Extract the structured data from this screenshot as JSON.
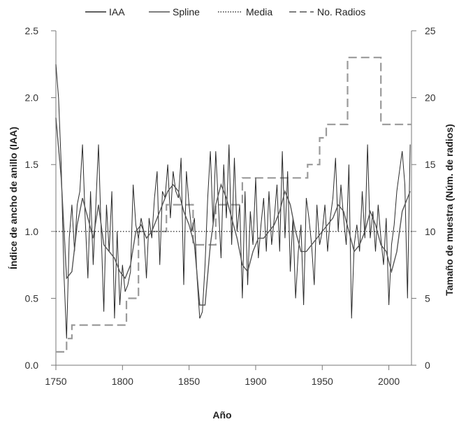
{
  "chart_data": {
    "type": "line",
    "xlabel": "Año",
    "ylabel_left": "Índice de ancho de anillo (IAA)",
    "ylabel_right": "Tamaño de muestra (Núm. de radios)",
    "xlim": [
      1750,
      2017
    ],
    "ylim_left": [
      0,
      2.5
    ],
    "ylim_right": [
      0,
      25
    ],
    "x_ticks": [
      1750,
      1800,
      1850,
      1900,
      1950,
      2000
    ],
    "y_ticks_left": [
      "0.0",
      "0.5",
      "1.0",
      "1.5",
      "2.0",
      "2.5"
    ],
    "y_ticks_right": [
      "0",
      "5",
      "10",
      "15",
      "20",
      "25"
    ],
    "legend": [
      "IAA",
      "Spline",
      "Media",
      "No. Radios"
    ],
    "legend_position": "top",
    "grid": false,
    "media": 1.0,
    "colors": {
      "iaa": "#2b2b2b",
      "spline": "#555555",
      "media": "#111111",
      "radios": "#9a9a9a"
    },
    "series": [
      {
        "name": "IAA",
        "axis": "left",
        "x": [
          1750,
          1752,
          1754,
          1756,
          1758,
          1760,
          1762,
          1764,
          1766,
          1768,
          1770,
          1772,
          1774,
          1776,
          1778,
          1780,
          1782,
          1784,
          1786,
          1788,
          1790,
          1792,
          1794,
          1796,
          1798,
          1800,
          1802,
          1804,
          1806,
          1808,
          1810,
          1812,
          1814,
          1816,
          1818,
          1820,
          1822,
          1824,
          1826,
          1828,
          1830,
          1832,
          1834,
          1836,
          1838,
          1840,
          1842,
          1844,
          1846,
          1848,
          1850,
          1852,
          1854,
          1856,
          1858,
          1860,
          1862,
          1864,
          1866,
          1868,
          1870,
          1872,
          1874,
          1876,
          1878,
          1880,
          1882,
          1884,
          1886,
          1888,
          1890,
          1892,
          1894,
          1896,
          1898,
          1900,
          1902,
          1904,
          1906,
          1908,
          1910,
          1912,
          1914,
          1916,
          1918,
          1920,
          1922,
          1924,
          1926,
          1928,
          1930,
          1932,
          1934,
          1936,
          1938,
          1940,
          1942,
          1944,
          1946,
          1948,
          1950,
          1952,
          1954,
          1956,
          1958,
          1960,
          1962,
          1964,
          1966,
          1968,
          1970,
          1972,
          1974,
          1976,
          1978,
          1980,
          1982,
          1984,
          1986,
          1988,
          1990,
          1992,
          1994,
          1996,
          1998,
          2000,
          2002,
          2004,
          2006,
          2008,
          2010,
          2012,
          2014,
          2016
        ],
        "values": [
          2.25,
          2.0,
          1.5,
          0.7,
          0.2,
          0.95,
          1.2,
          0.85,
          1.2,
          1.3,
          1.65,
          1.1,
          0.65,
          1.3,
          0.75,
          1.2,
          1.65,
          1.0,
          0.4,
          1.2,
          0.85,
          1.3,
          0.35,
          1.0,
          0.45,
          0.75,
          0.55,
          0.6,
          0.7,
          1.35,
          1.05,
          0.95,
          1.1,
          1.0,
          0.65,
          1.1,
          0.95,
          1.25,
          1.45,
          0.75,
          1.3,
          1.25,
          1.5,
          1.1,
          1.45,
          1.3,
          1.25,
          1.55,
          0.6,
          1.45,
          1.2,
          1.0,
          1.1,
          0.65,
          0.35,
          0.4,
          0.75,
          1.25,
          1.6,
          1.05,
          1.6,
          1.2,
          0.8,
          1.5,
          1.1,
          1.65,
          0.9,
          1.55,
          1.0,
          1.2,
          0.5,
          1.3,
          0.6,
          1.15,
          0.9,
          1.4,
          0.8,
          1.05,
          1.25,
          0.85,
          1.3,
          0.9,
          1.1,
          1.35,
          0.85,
          1.6,
          0.95,
          1.45,
          0.7,
          1.1,
          0.5,
          0.85,
          1.05,
          0.45,
          1.25,
          1.1,
          0.9,
          0.6,
          1.2,
          0.9,
          1.0,
          1.2,
          0.85,
          1.1,
          1.25,
          1.55,
          1.0,
          1.35,
          1.1,
          0.9,
          1.5,
          0.35,
          0.9,
          1.05,
          0.85,
          1.3,
          0.95,
          1.65,
          0.95,
          1.15,
          0.85,
          1.2,
          0.95,
          0.75,
          1.1,
          0.45,
          0.9,
          1.05,
          1.3,
          1.45,
          1.6,
          1.35,
          0.5,
          1.65
        ]
      },
      {
        "name": "Spline",
        "axis": "left",
        "x": [
          1750,
          1754,
          1758,
          1762,
          1766,
          1770,
          1774,
          1778,
          1782,
          1786,
          1790,
          1794,
          1798,
          1802,
          1806,
          1810,
          1814,
          1818,
          1822,
          1826,
          1830,
          1834,
          1838,
          1842,
          1846,
          1850,
          1854,
          1858,
          1862,
          1866,
          1870,
          1874,
          1878,
          1882,
          1886,
          1890,
          1894,
          1898,
          1902,
          1906,
          1910,
          1914,
          1918,
          1922,
          1926,
          1930,
          1934,
          1938,
          1942,
          1946,
          1950,
          1954,
          1958,
          1962,
          1966,
          1970,
          1974,
          1978,
          1982,
          1986,
          1990,
          1994,
          1998,
          2002,
          2006,
          2010,
          2014,
          2016
        ],
        "values": [
          1.85,
          1.4,
          0.65,
          0.7,
          1.05,
          1.25,
          1.1,
          0.95,
          1.2,
          0.9,
          0.85,
          0.8,
          0.7,
          0.65,
          0.75,
          1.0,
          1.05,
          0.95,
          1.0,
          1.1,
          1.2,
          1.3,
          1.35,
          1.3,
          1.15,
          1.05,
          0.9,
          0.45,
          0.45,
          0.9,
          1.2,
          1.35,
          1.25,
          1.1,
          0.95,
          0.75,
          0.7,
          0.85,
          0.95,
          0.95,
          1.0,
          1.05,
          1.15,
          1.3,
          1.2,
          1.0,
          0.85,
          0.85,
          0.9,
          0.95,
          1.0,
          1.05,
          1.1,
          1.2,
          1.15,
          1.0,
          0.85,
          0.9,
          1.0,
          1.15,
          1.05,
          0.9,
          0.85,
          0.7,
          0.85,
          1.15,
          1.25,
          1.3
        ]
      },
      {
        "name": "Media",
        "axis": "left",
        "x": [
          1750,
          2017
        ],
        "values": [
          1.0,
          1.0
        ]
      },
      {
        "name": "No. Radios",
        "axis": "right",
        "x": [
          1750,
          1758,
          1758,
          1762,
          1762,
          1803,
          1803,
          1812,
          1812,
          1833,
          1833,
          1853,
          1853,
          1870,
          1870,
          1890,
          1890,
          1939,
          1939,
          1948,
          1948,
          1953,
          1953,
          1960,
          1960,
          1969,
          1969,
          1994,
          1994,
          2017
        ],
        "values": [
          1,
          1,
          2,
          2,
          3,
          3,
          5,
          5,
          10,
          10,
          12,
          12,
          9,
          9,
          12,
          12,
          14,
          14,
          15,
          15,
          17,
          17,
          18,
          18,
          18,
          18,
          23,
          23,
          18,
          18
        ]
      }
    ]
  }
}
